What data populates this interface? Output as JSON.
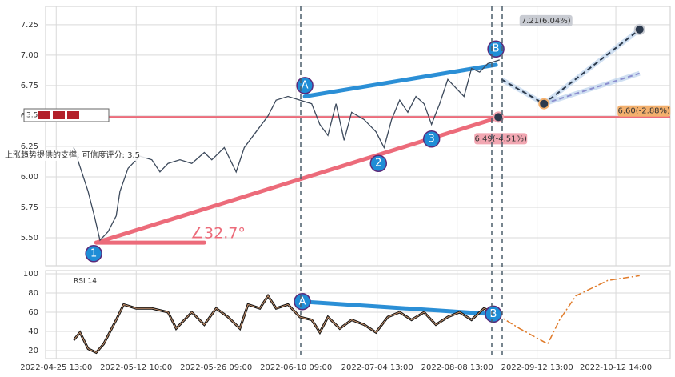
{
  "chart_data": [
    {
      "type": "line",
      "color": "#3d4a5c",
      "ylim": [
        5.27,
        7.4
      ],
      "yticks": [
        {
          "value": 5.5,
          "label": "5.50"
        },
        5.75,
        {
          "value": 6.0,
          "label": "6.00"
        },
        6.25,
        {
          "value": 6.5,
          "label": "6.50"
        },
        6.75,
        {
          "value": 7.0,
          "label": "7.00"
        },
        7.25
      ],
      "x": [
        4.5,
        6.8,
        7.8,
        8.7,
        10.0,
        11.3,
        11.9,
        13.2,
        15.1,
        17.0,
        18.3,
        19.6,
        21.5,
        23.4,
        25.4,
        26.6,
        28.6,
        30.5,
        31.8,
        33.7,
        35.6,
        36.9,
        38.8,
        40.7,
        42.6,
        43.9,
        45.2,
        46.5,
        47.8,
        49.0,
        51.0,
        52.9,
        54.2,
        55.4,
        56.7,
        58.0,
        59.3,
        60.6,
        61.8,
        63.1,
        64.4,
        65.7,
        67.0,
        68.2,
        69.5,
        70.8,
        72.7
      ],
      "values": [
        6.24,
        5.88,
        5.68,
        5.48,
        5.55,
        5.68,
        5.88,
        6.07,
        6.17,
        6.14,
        6.04,
        6.11,
        6.14,
        6.11,
        6.2,
        6.14,
        6.24,
        6.04,
        6.24,
        6.37,
        6.5,
        6.63,
        6.66,
        6.63,
        6.6,
        6.43,
        6.34,
        6.6,
        6.3,
        6.53,
        6.47,
        6.37,
        6.24,
        6.47,
        6.63,
        6.53,
        6.66,
        6.6,
        6.43,
        6.6,
        6.8,
        6.73,
        6.66,
        6.89,
        6.86,
        6.93,
        6.96
      ],
      "waves": [
        {
          "label": "1",
          "x": 7.7,
          "y": 5.37,
          "color": "#1f8dd6"
        },
        {
          "label": "A",
          "x": 41.5,
          "y": 6.75,
          "color": "#1f8dd6"
        },
        {
          "label": "2",
          "x": 53.3,
          "y": 6.11,
          "color": "#1f8dd6"
        },
        {
          "label": "3",
          "x": 61.8,
          "y": 6.31,
          "color": "#1f8dd6"
        },
        {
          "label": "B",
          "x": 72.1,
          "y": 7.05,
          "color": "#1f8dd6"
        }
      ],
      "trendlines": [
        {
          "color": "#ec6b7a",
          "x": [
            8.1,
            72.7
          ],
          "y": [
            5.46,
            6.49
          ]
        },
        {
          "color": "#ec6b7a",
          "x": [
            8.1,
            25.4
          ],
          "y": [
            5.46,
            5.46
          ]
        },
        {
          "color": "#2b8fd6",
          "x": [
            41.5,
            72.1
          ],
          "y": [
            6.66,
            6.92
          ]
        }
      ],
      "support": 6.49,
      "support_color": "#ec6b7a",
      "angle_label": "∠32.7°",
      "support_text": "上涨趋势提供的支撑: 可信度评分: 3.5",
      "score_box": "3.5",
      "projections": [
        {
          "color": "#2c3a4d",
          "x": [
            73.0,
            79.8,
            95.1
          ],
          "y": [
            6.8,
            6.6,
            7.21
          ]
        },
        {
          "color": "#8c8fcf",
          "x": [
            79.8,
            95.1
          ],
          "y": [
            6.6,
            6.85
          ]
        }
      ],
      "targets": [
        {
          "label": "7.21(6.04%)",
          "x": 95.1,
          "value": 7.21,
          "color": "#c9ccd3"
        },
        {
          "label": "6.60(-2.88%)",
          "x": 79.8,
          "value": 6.6,
          "color": "#f3b06d"
        },
        {
          "label": "6.49(-4.51%)",
          "x": 72.5,
          "value": 6.49,
          "color": "#f2a7b2"
        }
      ]
    },
    {
      "type": "line",
      "title": "RSI 14",
      "color": "#111",
      "ylim": [
        11.7,
        103.3
      ],
      "yticks": [
        20,
        40,
        60,
        80,
        100
      ],
      "xlim": [
        0,
        100
      ],
      "xticks": [
        {
          "value": 1.7,
          "label": "2022-04-25 13:00"
        },
        {
          "value": 14.5,
          "label": "2022-05-12 10:00"
        },
        {
          "value": 27.3,
          "label": "2022-05-26 09:00"
        },
        {
          "value": 40.1,
          "label": "2022-06-10 09:00"
        },
        {
          "value": 53.1,
          "label": "2022-07-04 13:00"
        },
        {
          "value": 65.9,
          "label": "2022-08-08 13:00"
        },
        {
          "value": 78.7,
          "label": "2022-09-12 13:00"
        },
        {
          "value": 91.3,
          "label": "2022-10-12 14:00"
        }
      ],
      "x": [
        4.5,
        5.5,
        6.8,
        8.1,
        9.3,
        11.3,
        12.5,
        14.5,
        17.0,
        19.6,
        20.9,
        23.4,
        25.4,
        27.3,
        29.2,
        31.1,
        32.4,
        34.3,
        35.6,
        36.9,
        38.8,
        40.7,
        42.6,
        43.9,
        45.2,
        47.1,
        49.0,
        51.0,
        52.9,
        54.8,
        56.7,
        58.6,
        60.6,
        62.5,
        64.4,
        66.3,
        68.2,
        70.2,
        71.4
      ],
      "values": [
        31,
        39,
        22,
        18,
        27,
        52,
        68,
        64,
        64,
        60,
        43,
        60,
        47,
        64,
        55,
        43,
        68,
        64,
        77,
        64,
        68,
        55,
        52,
        39,
        55,
        43,
        52,
        47,
        39,
        55,
        60,
        52,
        60,
        47,
        55,
        60,
        52,
        64,
        60
      ],
      "forecast": {
        "color": "#e07b2a",
        "x": [
          72.1,
          75.9,
          80.4,
          82.3,
          84.9,
          90.0,
          95.1
        ],
        "values": [
          58,
          43,
          27,
          52,
          77,
          93,
          98
        ]
      },
      "waves": [
        {
          "label": "A",
          "x": 41.1,
          "y": 71,
          "color": "#1f8dd6"
        },
        {
          "label": "B",
          "x": 71.7,
          "y": 58,
          "color": "#1f8dd6"
        }
      ],
      "trendlines": [
        {
          "color": "#2b8fd6",
          "x": [
            41.1,
            71.7
          ],
          "y": [
            71,
            58
          ]
        }
      ]
    }
  ]
}
